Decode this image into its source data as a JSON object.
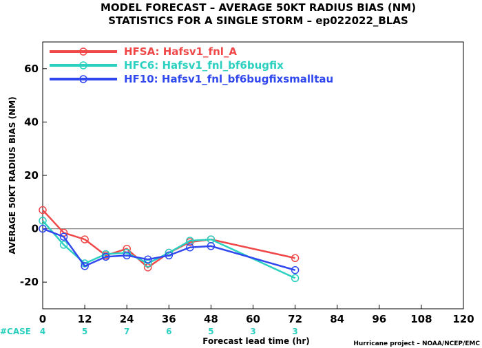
{
  "title_line1": "MODEL FORECAST – AVERAGE 50KT RADIUS BIAS (NM)",
  "title_line2": "STATISTICS FOR A SINGLE STORM – ep022022_BLAS",
  "credit": "Hurricane project – NOAA/NCEP/EMC",
  "case_label": "#CASE",
  "colors": {
    "hfsa": "#f04848",
    "hfc6": "#2bd0c0",
    "hf10": "#3048ee",
    "zero_line": "#808080",
    "case_counts": "#2bd0c0"
  },
  "chart_data": {
    "type": "line",
    "title": "MODEL FORECAST – AVERAGE 50KT RADIUS BIAS (NM)",
    "subtitle": "STATISTICS FOR A SINGLE STORM – ep022022_BLAS",
    "xlabel": "Forecast lead time (hr)",
    "ylabel": "AVERAGE 50KT RADIUS BIAS (NM)",
    "xlim": [
      0,
      120
    ],
    "ylim": [
      -30,
      70
    ],
    "xticks": [
      0,
      12,
      24,
      36,
      48,
      60,
      72,
      84,
      96,
      108,
      120
    ],
    "yticks": [
      -20,
      0,
      20,
      40,
      60
    ],
    "grid": false,
    "legend": "top-left",
    "series": [
      {
        "name": "HFSA: Hafsv1_fnl_A",
        "color": "#f04848",
        "x": [
          0,
          6,
          12,
          18,
          24,
          30,
          36,
          42,
          48,
          72
        ],
        "y": [
          7,
          -1.5,
          -4,
          -10,
          -7.5,
          -14.5,
          -9,
          -5,
          -4,
          -11
        ]
      },
      {
        "name": "HFC6: Hafsv1_fnl_bf6bugfix",
        "color": "#2bd0c0",
        "x": [
          0,
          6,
          12,
          18,
          24,
          30,
          36,
          42,
          48,
          72
        ],
        "y": [
          3,
          -6,
          -13,
          -9.5,
          -9,
          -13,
          -9,
          -4.5,
          -4,
          -18.5
        ]
      },
      {
        "name": "HF10: Hafsv1_fnl_bf6bugfixsmalltau",
        "color": "#3048ee",
        "x": [
          0,
          6,
          12,
          18,
          24,
          30,
          36,
          42,
          48,
          72
        ],
        "y": [
          0,
          -3,
          -14,
          -10.5,
          -10,
          -11.5,
          -10,
          -7,
          -6.5,
          -15.5
        ]
      }
    ],
    "case_counts": [
      {
        "x": 0,
        "n": "4"
      },
      {
        "x": 12,
        "n": "5"
      },
      {
        "x": 24,
        "n": "7"
      },
      {
        "x": 36,
        "n": "6"
      },
      {
        "x": 48,
        "n": "5"
      },
      {
        "x": 60,
        "n": "3"
      },
      {
        "x": 72,
        "n": "3"
      }
    ]
  }
}
